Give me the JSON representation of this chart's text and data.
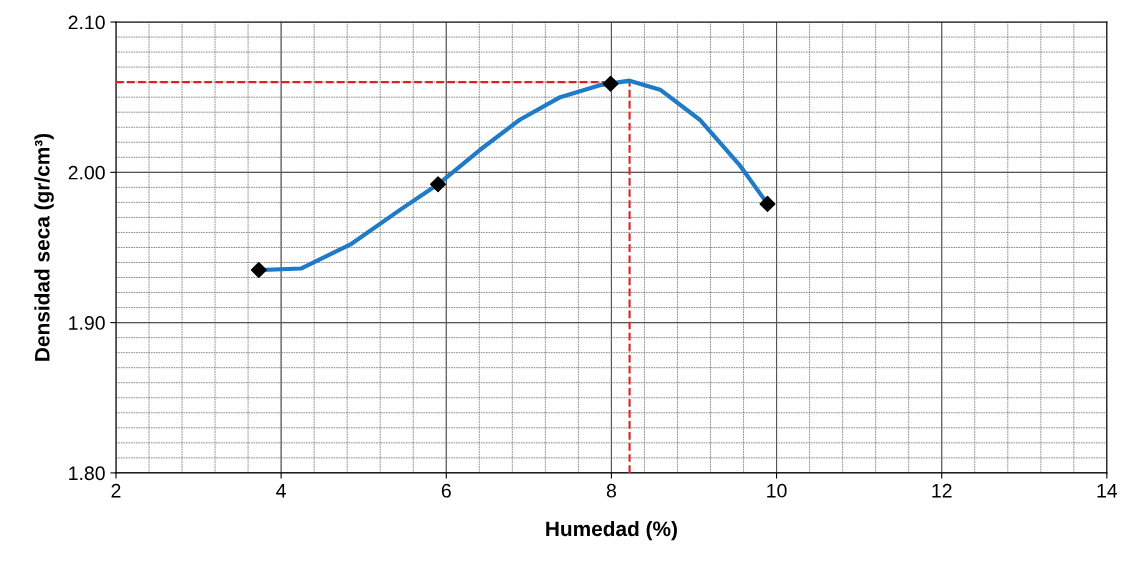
{
  "chart_data": {
    "type": "scatter",
    "xlabel": "Humedad (%)",
    "ylabel": "Densidad seca (gr/cm³)",
    "x": [
      3.73,
      5.9,
      7.99,
      9.89
    ],
    "series": [
      {
        "type": "line",
        "color": "#1f7ac8",
        "x": [
          3.73,
          4.24,
          4.84,
          5.44,
          5.9,
          6.41,
          6.89,
          7.38,
          7.86,
          8.22,
          8.59,
          9.07,
          9.55,
          9.89
        ],
        "values": [
          1.935,
          1.936,
          1.952,
          1.975,
          1.992,
          2.015,
          2.035,
          2.05,
          2.058,
          2.061,
          2.055,
          2.035,
          2.005,
          1.979
        ]
      },
      {
        "marker": "diamond",
        "color": "#000000",
        "values": [
          1.935,
          1.992,
          2.059,
          1.979
        ]
      }
    ],
    "xlim": [
      2,
      14
    ],
    "xticks": [
      2,
      4,
      6,
      8,
      10,
      12,
      14
    ],
    "ylim": [
      1.8,
      2.1
    ],
    "yticks": [
      {
        "value": 1.8,
        "label": "1.80"
      },
      {
        "value": 1.9,
        "label": "1.90"
      },
      {
        "value": 2.0,
        "label": "2.00"
      },
      {
        "value": 2.1,
        "label": "2.10"
      }
    ],
    "grid": true,
    "ref_lines": [
      {
        "axis": "y",
        "value": 2.06,
        "color": "#e02020",
        "line_style": "dashed"
      },
      {
        "axis": "x",
        "value": 8.22,
        "color": "#e02020",
        "line_style": "dashed"
      }
    ]
  }
}
